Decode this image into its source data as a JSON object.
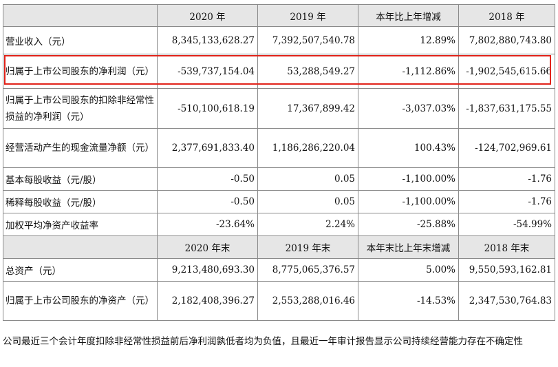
{
  "table": {
    "header1": [
      "",
      "2020 年",
      "2019 年",
      "本年比上年增减",
      "2018 年"
    ],
    "rows1": [
      {
        "label": "营业收入（元）",
        "values": [
          "8,345,133,628.27",
          "7,392,507,540.78",
          "12.89%",
          "7,802,880,743.80"
        ]
      },
      {
        "label": "归属于上市公司股东的净利润（元）",
        "values": [
          "-539,737,154.04",
          "53,288,549.27",
          "-1,112.86%",
          "-1,902,545,615.66"
        ]
      },
      {
        "label": "归属于上市公司股东的扣除非经常性损益的净利润（元）",
        "values": [
          "-510,100,618.19",
          "17,367,899.42",
          "-3,037.03%",
          "-1,837,631,175.55"
        ]
      },
      {
        "label": "经营活动产生的现金流量净额（元）",
        "values": [
          "2,377,691,833.40",
          "1,186,286,220.04",
          "100.43%",
          "-124,702,969.61"
        ]
      },
      {
        "label": "基本每股收益（元/股）",
        "values": [
          "-0.50",
          "0.05",
          "-1,100.00%",
          "-1.76"
        ]
      },
      {
        "label": "稀释每股收益（元/股）",
        "values": [
          "-0.50",
          "0.05",
          "-1,100.00%",
          "-1.76"
        ]
      },
      {
        "label": "加权平均净资产收益率",
        "values": [
          "-23.64%",
          "2.24%",
          "-25.88%",
          "-54.99%"
        ]
      }
    ],
    "header2": [
      "",
      "2020 年末",
      "2019 年末",
      "本年末比上年末增减",
      "2018 年末"
    ],
    "rows2": [
      {
        "label": "总资产（元）",
        "values": [
          "9,213,480,693.30",
          "8,775,065,376.57",
          "5.00%",
          "9,550,593,162.81"
        ]
      },
      {
        "label": "归属于上市公司股东的净资产（元）",
        "values": [
          "2,182,408,396.27",
          "2,553,288,016.46",
          "-14.53%",
          "2,347,530,764.83"
        ]
      }
    ]
  },
  "highlight_color": "#e2231a",
  "footnote": "公司最近三个会计年度扣除非经常性损益前后净利润孰低者均为负值，且最近一年审计报告显示公司持续经营能力存在不确定性"
}
